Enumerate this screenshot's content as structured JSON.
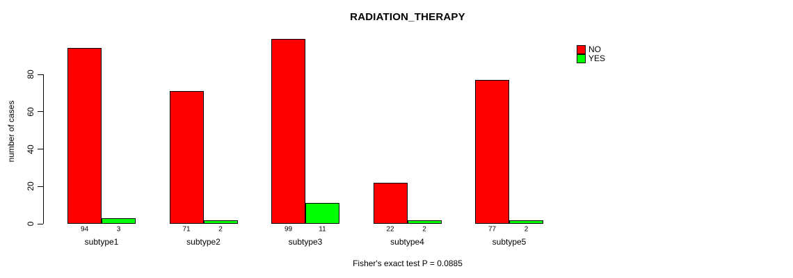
{
  "title": "RADIATION_THERAPY",
  "y_axis": {
    "label": "number of cases",
    "ticks": [
      0,
      20,
      40,
      60,
      80
    ]
  },
  "legend": {
    "items": [
      {
        "label": "NO",
        "color": "#FF0000"
      },
      {
        "label": "YES",
        "color": "#00FF00"
      }
    ]
  },
  "footer": "Fisher's exact test P = 0.0885",
  "chart_data": {
    "type": "bar",
    "title": "RADIATION_THERAPY",
    "categories": [
      "subtype1",
      "subtype2",
      "subtype3",
      "subtype4",
      "subtype5"
    ],
    "series": [
      {
        "name": "NO",
        "color": "#FF0000",
        "values": [
          94,
          71,
          99,
          22,
          77
        ]
      },
      {
        "name": "YES",
        "color": "#00FF00",
        "values": [
          3,
          2,
          11,
          2,
          2
        ]
      }
    ],
    "xlabel": "",
    "ylabel": "number of cases",
    "ylim": [
      0,
      99
    ],
    "yticks": [
      0,
      20,
      40,
      60,
      80
    ],
    "bar_value_labels": true,
    "bar_border_color": "#000000",
    "legend_position": "top-right",
    "grid": false,
    "annotation": "Fisher's exact test P = 0.0885"
  }
}
